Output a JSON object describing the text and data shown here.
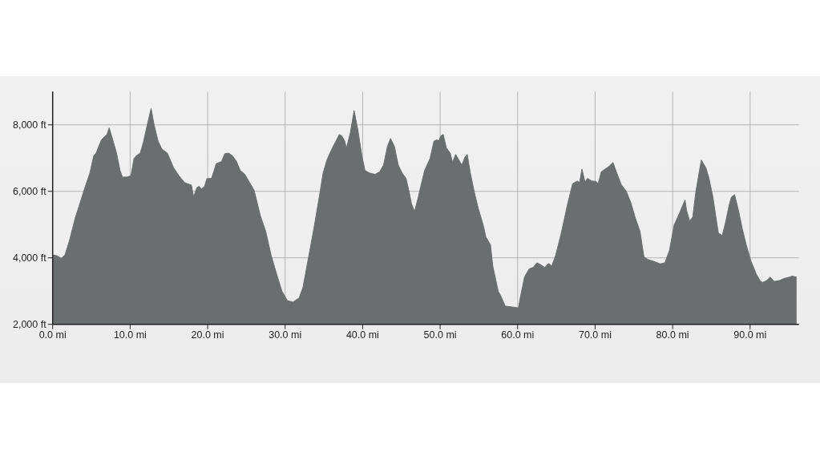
{
  "chart_data": {
    "type": "area",
    "color": "#6b6e6f",
    "x": [
      0,
      0.6,
      1.1,
      1.6,
      2.2,
      2.9,
      3.4,
      4.1,
      4.8,
      5.3,
      5.6,
      6.3,
      6.8,
      7.0,
      7.3,
      7.5,
      8.2,
      8.7,
      9.0,
      9.6,
      10.1,
      10.5,
      10.8,
      11.3,
      11.7,
      12.2,
      12.7,
      13.1,
      13.6,
      14.1,
      14.8,
      15.1,
      15.6,
      16.3,
      17.0,
      17.5,
      17.9,
      18.2,
      18.6,
      18.9,
      19.2,
      19.6,
      19.9,
      20.5,
      20.8,
      21.1,
      21.8,
      22.2,
      22.7,
      23.2,
      23.7,
      24.2,
      24.8,
      25.3,
      26.0,
      26.8,
      27.5,
      28.2,
      28.9,
      29.6,
      30.3,
      31.0,
      31.8,
      32.3,
      33.0,
      33.7,
      34.4,
      34.9,
      35.4,
      36.1,
      37.0,
      37.3,
      37.7,
      37.9,
      38.4,
      38.9,
      39.4,
      39.9,
      40.3,
      40.9,
      41.6,
      42.2,
      42.7,
      43.2,
      43.6,
      44.1,
      44.6,
      45.1,
      45.6,
      46.0,
      46.3,
      46.7,
      47.1,
      47.5,
      48.0,
      48.7,
      49.2,
      49.6,
      49.8,
      50.1,
      50.4,
      50.8,
      51.3,
      51.6,
      52.0,
      52.5,
      52.8,
      53.2,
      53.5,
      53.9,
      54.4,
      54.9,
      55.6,
      55.9,
      56.5,
      56.8,
      57.5,
      57.8,
      58.4,
      59.0,
      59.7,
      60.1,
      60.4,
      60.9,
      61.5,
      62.0,
      62.5,
      63.0,
      63.5,
      64.0,
      64.4,
      64.9,
      65.6,
      66.5,
      67.1,
      67.7,
      68.0,
      68.3,
      68.7,
      69.0,
      69.6,
      70.1,
      70.4,
      70.8,
      71.3,
      71.8,
      72.3,
      72.8,
      73.4,
      74.0,
      74.6,
      75.2,
      75.8,
      76.3,
      76.8,
      77.5,
      78.4,
      79.0,
      79.6,
      80.2,
      80.9,
      81.6,
      81.8,
      82.2,
      82.6,
      83.0,
      83.7,
      84.3,
      84.7,
      85.2,
      85.9,
      86.4,
      86.8,
      87.3,
      87.6,
      88.0,
      88.5,
      89.0,
      89.5,
      90.1,
      90.8,
      91.3,
      91.6,
      92.1,
      92.6,
      93.1,
      93.7,
      94.4,
      95.1,
      95.4,
      96.0
    ],
    "values": [
      4090,
      4060,
      3980,
      4090,
      4550,
      5190,
      5550,
      6070,
      6550,
      7070,
      7150,
      7550,
      7670,
      7710,
      7910,
      7750,
      7190,
      6630,
      6430,
      6430,
      6470,
      6990,
      7070,
      7150,
      7470,
      7990,
      8490,
      7990,
      7510,
      7270,
      7150,
      6990,
      6710,
      6470,
      6270,
      6220,
      6190,
      5830,
      6110,
      6150,
      6070,
      6150,
      6380,
      6390,
      6600,
      6830,
      6900,
      7130,
      7150,
      7070,
      6910,
      6630,
      6510,
      6310,
      6030,
      5270,
      4790,
      4070,
      3510,
      2990,
      2710,
      2670,
      2790,
      3110,
      3990,
      4870,
      5830,
      6550,
      6950,
      7310,
      7710,
      7670,
      7510,
      7290,
      7750,
      8430,
      7830,
      7070,
      6630,
      6550,
      6510,
      6590,
      6790,
      7350,
      7590,
      7350,
      6790,
      6550,
      6390,
      5990,
      5630,
      5390,
      5750,
      6150,
      6630,
      6990,
      7510,
      7550,
      7510,
      7670,
      7710,
      7310,
      7150,
      6870,
      7110,
      6910,
      6790,
      7030,
      7110,
      6550,
      5990,
      5510,
      4950,
      4630,
      4390,
      3750,
      2990,
      2870,
      2550,
      2530,
      2510,
      2490,
      2870,
      3430,
      3670,
      3710,
      3850,
      3790,
      3710,
      3830,
      3750,
      4070,
      4710,
      5670,
      6230,
      6310,
      6270,
      6670,
      6270,
      6390,
      6310,
      6300,
      6230,
      6590,
      6670,
      6750,
      6870,
      6550,
      6190,
      6010,
      5670,
      5190,
      4790,
      4030,
      3950,
      3900,
      3820,
      3850,
      4230,
      4990,
      5350,
      5740,
      5430,
      5110,
      5230,
      5990,
      6940,
      6710,
      6390,
      5830,
      4750,
      4670,
      5030,
      5590,
      5830,
      5900,
      5430,
      4870,
      4390,
      3910,
      3510,
      3310,
      3260,
      3310,
      3420,
      3290,
      3310,
      3380,
      3420,
      3450,
      3420
    ],
    "xlim": [
      0,
      96.3
    ],
    "ylim": [
      2000,
      9000
    ],
    "xticks": [
      {
        "value": 0,
        "label": "0.0 mi"
      },
      {
        "value": 10,
        "label": "10.0 mi"
      },
      {
        "value": 20,
        "label": "20.0 mi"
      },
      {
        "value": 30,
        "label": "30.0 mi"
      },
      {
        "value": 40,
        "label": "40.0 mi"
      },
      {
        "value": 50,
        "label": "50.0 mi"
      },
      {
        "value": 60,
        "label": "60.0 mi"
      },
      {
        "value": 70,
        "label": "70.0 mi"
      },
      {
        "value": 80,
        "label": "80.0 mi"
      },
      {
        "value": 90,
        "label": "90.0 mi"
      }
    ],
    "yticks": [
      {
        "value": 2000,
        "label": "2,000 ft"
      },
      {
        "value": 4000,
        "label": "4,000 ft"
      },
      {
        "value": 6000,
        "label": "6,000 ft"
      },
      {
        "value": 8000,
        "label": "8,000 ft"
      }
    ],
    "grid": true
  }
}
